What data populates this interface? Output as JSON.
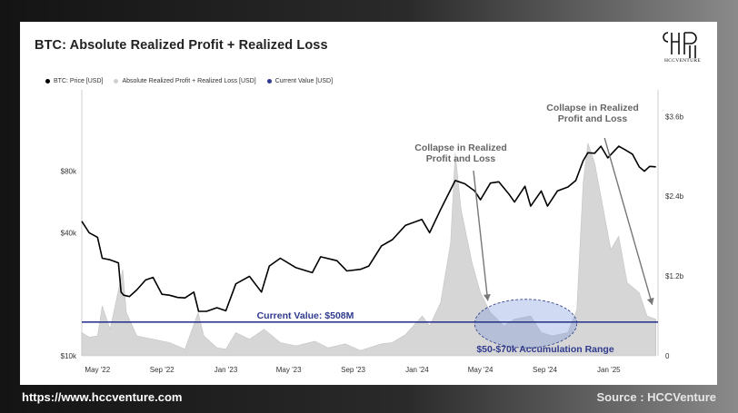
{
  "title": "BTC: Absolute Realized Profit + Realized Loss",
  "logo": {
    "icon": "hcc-monogram-logo",
    "text": "HCCVENTURE"
  },
  "legend": [
    {
      "label": "BTC: Price [USD]",
      "color": "#000000"
    },
    {
      "label": "Absolute Realized Profit + Realized Loss [USD]",
      "color": "#d0d0d0"
    },
    {
      "label": "Current Value [USD]",
      "color": "#2f3a8f"
    }
  ],
  "footer": {
    "url": "https://www.hccventure.com",
    "source": "Source : HCCVenture"
  },
  "chart_data": {
    "type": "line",
    "title": "BTC: Absolute Realized Profit + Realized Loss",
    "x_tick_labels": [
      "May '22",
      "Sep '22",
      "Jan '23",
      "May '23",
      "Sep '23",
      "Jan '24",
      "May '24",
      "Sep '24",
      "Jan '25"
    ],
    "x_range": [
      "2022-04-01",
      "2025-04-05"
    ],
    "y_left": {
      "scale": "log",
      "ticks": [
        "$10k",
        "$40k",
        "$80k"
      ],
      "tick_values": [
        10000,
        40000,
        80000
      ],
      "range": [
        10000,
        200000
      ]
    },
    "y_right": {
      "scale": "linear",
      "ticks": [
        "0",
        "$1.2b",
        "$2.4b",
        "$3.6b"
      ],
      "tick_values": [
        0,
        1.2,
        2.4,
        3.6
      ],
      "unit": "billion USD",
      "range": [
        0,
        4.0
      ]
    },
    "series": [
      {
        "name": "BTC: Price [USD]",
        "color": "#000000",
        "axis": "left",
        "points": [
          [
            "2022-04-01",
            45500
          ],
          [
            "2022-04-15",
            40000
          ],
          [
            "2022-05-01",
            38000
          ],
          [
            "2022-05-10",
            30000
          ],
          [
            "2022-05-25",
            29500
          ],
          [
            "2022-06-10",
            28500
          ],
          [
            "2022-06-15",
            20500
          ],
          [
            "2022-06-20",
            19800
          ],
          [
            "2022-07-01",
            19500
          ],
          [
            "2022-07-15",
            21000
          ],
          [
            "2022-08-01",
            23500
          ],
          [
            "2022-08-15",
            24200
          ],
          [
            "2022-09-01",
            20000
          ],
          [
            "2022-09-15",
            19800
          ],
          [
            "2022-10-01",
            19300
          ],
          [
            "2022-10-15",
            19200
          ],
          [
            "2022-11-01",
            20500
          ],
          [
            "2022-11-10",
            16500
          ],
          [
            "2022-11-25",
            16500
          ],
          [
            "2022-12-15",
            17200
          ],
          [
            "2023-01-01",
            16600
          ],
          [
            "2023-01-20",
            22500
          ],
          [
            "2023-02-15",
            24500
          ],
          [
            "2023-03-10",
            20500
          ],
          [
            "2023-03-25",
            27500
          ],
          [
            "2023-04-15",
            30000
          ],
          [
            "2023-05-15",
            27000
          ],
          [
            "2023-06-15",
            25500
          ],
          [
            "2023-07-01",
            30500
          ],
          [
            "2023-08-01",
            29200
          ],
          [
            "2023-08-20",
            26000
          ],
          [
            "2023-09-15",
            26500
          ],
          [
            "2023-10-01",
            27500
          ],
          [
            "2023-10-25",
            34500
          ],
          [
            "2023-11-15",
            37000
          ],
          [
            "2023-12-10",
            43500
          ],
          [
            "2024-01-10",
            46500
          ],
          [
            "2024-01-25",
            40000
          ],
          [
            "2024-02-15",
            52000
          ],
          [
            "2024-03-01",
            62000
          ],
          [
            "2024-03-14",
            72000
          ],
          [
            "2024-04-01",
            69500
          ],
          [
            "2024-04-20",
            64000
          ],
          [
            "2024-05-01",
            58000
          ],
          [
            "2024-05-20",
            70000
          ],
          [
            "2024-06-05",
            71000
          ],
          [
            "2024-06-25",
            61500
          ],
          [
            "2024-07-05",
            56500
          ],
          [
            "2024-07-25",
            67500
          ],
          [
            "2024-08-05",
            54000
          ],
          [
            "2024-08-25",
            64000
          ],
          [
            "2024-09-06",
            54000
          ],
          [
            "2024-09-25",
            64000
          ],
          [
            "2024-10-15",
            67000
          ],
          [
            "2024-10-30",
            72000
          ],
          [
            "2024-11-13",
            90000
          ],
          [
            "2024-11-22",
            98500
          ],
          [
            "2024-12-05",
            98000
          ],
          [
            "2024-12-17",
            106000
          ],
          [
            "2024-12-30",
            93000
          ],
          [
            "2025-01-20",
            106000
          ],
          [
            "2025-02-01",
            102000
          ],
          [
            "2025-02-15",
            97000
          ],
          [
            "2025-02-28",
            84000
          ],
          [
            "2025-03-10",
            80000
          ],
          [
            "2025-03-20",
            84500
          ],
          [
            "2025-04-01",
            84000
          ]
        ]
      },
      {
        "name": "Absolute Realized Profit + Realized Loss [USD]",
        "color": "#d0d0d0",
        "axis": "right",
        "unit": "billion USD",
        "points": [
          [
            "2022-04-01",
            0.35
          ],
          [
            "2022-04-15",
            0.28
          ],
          [
            "2022-05-01",
            0.3
          ],
          [
            "2022-05-10",
            0.75
          ],
          [
            "2022-05-25",
            0.4
          ],
          [
            "2022-06-13",
            1.1
          ],
          [
            "2022-06-18",
            1.3
          ],
          [
            "2022-06-25",
            0.65
          ],
          [
            "2022-07-15",
            0.3
          ],
          [
            "2022-08-15",
            0.25
          ],
          [
            "2022-09-15",
            0.2
          ],
          [
            "2022-10-15",
            0.1
          ],
          [
            "2022-11-09",
            0.65
          ],
          [
            "2022-11-20",
            0.3
          ],
          [
            "2022-12-15",
            0.12
          ],
          [
            "2023-01-01",
            0.1
          ],
          [
            "2023-01-20",
            0.35
          ],
          [
            "2023-02-15",
            0.25
          ],
          [
            "2023-03-15",
            0.4
          ],
          [
            "2023-04-15",
            0.2
          ],
          [
            "2023-05-15",
            0.15
          ],
          [
            "2023-06-20",
            0.22
          ],
          [
            "2023-07-15",
            0.12
          ],
          [
            "2023-08-17",
            0.18
          ],
          [
            "2023-09-15",
            0.08
          ],
          [
            "2023-10-25",
            0.18
          ],
          [
            "2023-11-15",
            0.2
          ],
          [
            "2023-12-10",
            0.32
          ],
          [
            "2024-01-11",
            0.6
          ],
          [
            "2024-01-25",
            0.45
          ],
          [
            "2024-02-15",
            0.8
          ],
          [
            "2024-03-05",
            1.7
          ],
          [
            "2024-03-14",
            3.05
          ],
          [
            "2024-03-25",
            2.2
          ],
          [
            "2024-04-15",
            1.4
          ],
          [
            "2024-05-01",
            0.95
          ],
          [
            "2024-05-20",
            0.65
          ],
          [
            "2024-06-15",
            0.45
          ],
          [
            "2024-07-05",
            0.55
          ],
          [
            "2024-08-05",
            0.6
          ],
          [
            "2024-08-25",
            0.35
          ],
          [
            "2024-09-15",
            0.3
          ],
          [
            "2024-10-15",
            0.35
          ],
          [
            "2024-11-01",
            0.7
          ],
          [
            "2024-11-13",
            2.6
          ],
          [
            "2024-11-22",
            3.2
          ],
          [
            "2024-12-05",
            2.9
          ],
          [
            "2024-12-17",
            2.4
          ],
          [
            "2025-01-05",
            1.6
          ],
          [
            "2025-01-20",
            1.8
          ],
          [
            "2025-02-05",
            1.1
          ],
          [
            "2025-02-28",
            0.95
          ],
          [
            "2025-03-15",
            0.6
          ],
          [
            "2025-04-01",
            0.55
          ]
        ]
      },
      {
        "name": "Current Value [USD]",
        "color": "#2f3a8f",
        "axis": "right",
        "unit": "billion USD",
        "points": [
          [
            "2022-04-01",
            0.508
          ],
          [
            "2025-04-05",
            0.508
          ]
        ]
      }
    ],
    "annotations": [
      {
        "text": "Collapse in Realized Profit and Loss",
        "lines": [
          "Collapse in Realized",
          "Profit and Loss"
        ],
        "anchor_date": "2024-03-14",
        "arrow_to": [
          "2024-05-15",
          0.5
        ]
      },
      {
        "text": "Collapse in Realized Profit and Loss",
        "lines": [
          "Collapse in Realized",
          "Profit and Loss"
        ],
        "anchor_date": "2024-12-17",
        "arrow_to": [
          "2025-03-25",
          0.55
        ]
      },
      {
        "text": "Current Value: $508M",
        "color": "#2f3a8f"
      },
      {
        "text": "$50-$70k Accumulation Range",
        "color": "#2f3a8f",
        "range_dates": [
          "2024-04-20",
          "2024-11-01"
        ],
        "range_values": [
          0.12,
          0.85
        ]
      }
    ]
  }
}
